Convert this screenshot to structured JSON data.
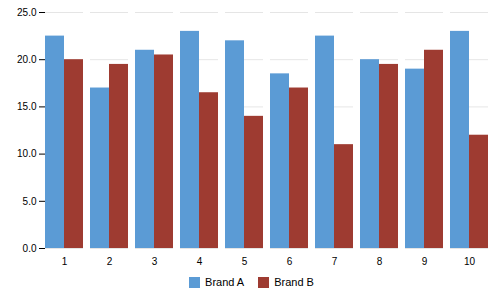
{
  "chart_data": {
    "type": "bar",
    "categories": [
      "1",
      "2",
      "3",
      "4",
      "5",
      "6",
      "7",
      "8",
      "9",
      "10"
    ],
    "series": [
      {
        "name": "Brand A",
        "color": "#5B9BD5",
        "values": [
          22.5,
          17.0,
          21.0,
          23.0,
          22.0,
          18.5,
          22.5,
          20.0,
          19.0,
          23.0
        ]
      },
      {
        "name": "Brand B",
        "color": "#9E3B31",
        "values": [
          20.0,
          19.5,
          20.5,
          16.5,
          14.0,
          17.0,
          11.0,
          19.5,
          21.0,
          12.0
        ]
      }
    ],
    "ylim": [
      0,
      25
    ],
    "yticks": [
      {
        "value": 0,
        "label": "0.0"
      },
      {
        "value": 5,
        "label": "5.0"
      },
      {
        "value": 10,
        "label": "10.0"
      },
      {
        "value": 15,
        "label": "15.0"
      },
      {
        "value": 20,
        "label": "20.0"
      },
      {
        "value": 25,
        "label": "25.0"
      }
    ],
    "grid": true,
    "legend": "bottom"
  }
}
